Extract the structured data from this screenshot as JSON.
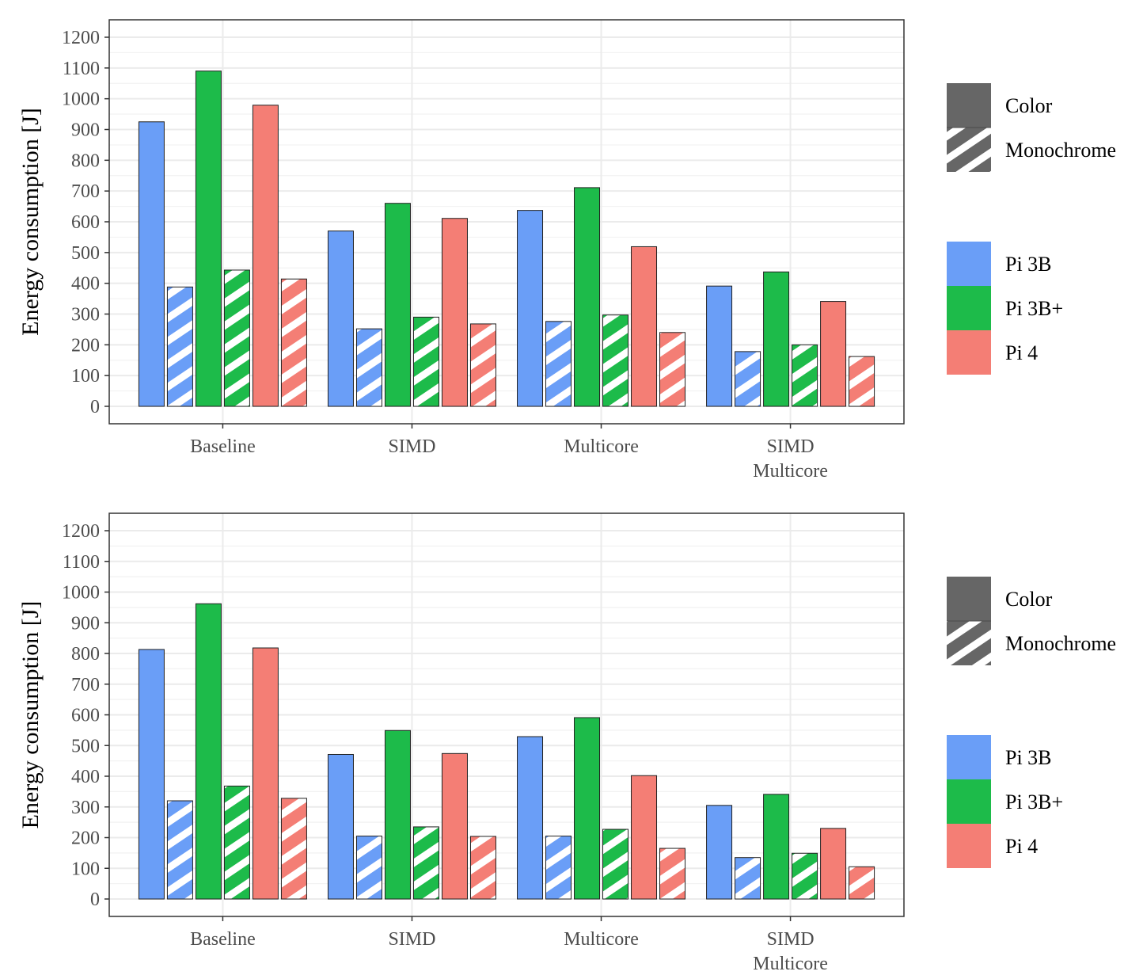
{
  "chart_data": [
    {
      "type": "bar",
      "categories": [
        "Baseline",
        "SIMD",
        "Multicore",
        "SIMD\nMulticore"
      ],
      "ylabel": "Energy consumption [J]",
      "xlabel": "",
      "ylim": [
        0,
        1200
      ],
      "yticks": [
        0,
        100,
        200,
        300,
        400,
        500,
        600,
        700,
        800,
        900,
        1000,
        1100,
        1200
      ],
      "series": [
        {
          "name": "Pi 3B Color",
          "device": "Pi 3B",
          "mode": "Color",
          "values": [
            925,
            570,
            637,
            391
          ]
        },
        {
          "name": "Pi 3B Monochrome",
          "device": "Pi 3B",
          "mode": "Monochrome",
          "values": [
            388,
            252,
            276,
            178
          ]
        },
        {
          "name": "Pi 3B+ Color",
          "device": "Pi 3B+",
          "mode": "Color",
          "values": [
            1090,
            660,
            711,
            437
          ]
        },
        {
          "name": "Pi 3B+ Monochrome",
          "device": "Pi 3B+",
          "mode": "Monochrome",
          "values": [
            443,
            290,
            297,
            200
          ]
        },
        {
          "name": "Pi 4 Color",
          "device": "Pi 4",
          "mode": "Color",
          "values": [
            979,
            611,
            519,
            341
          ]
        },
        {
          "name": "Pi 4 Monochrome",
          "device": "Pi 4",
          "mode": "Monochrome",
          "values": [
            414,
            268,
            240,
            162
          ]
        }
      ],
      "legend_mode": [
        "Color",
        "Monochrome"
      ],
      "legend_device": [
        {
          "label": "Pi 3B",
          "color": "#6A9EF7"
        },
        {
          "label": "Pi 3B+",
          "color": "#1DBB4A"
        },
        {
          "label": "Pi 4",
          "color": "#F47E75"
        }
      ]
    },
    {
      "type": "bar",
      "categories": [
        "Baseline",
        "SIMD",
        "Multicore",
        "SIMD\nMulticore"
      ],
      "ylabel": "Energy consumption [J]",
      "xlabel": "",
      "ylim": [
        0,
        1200
      ],
      "yticks": [
        0,
        100,
        200,
        300,
        400,
        500,
        600,
        700,
        800,
        900,
        1000,
        1100,
        1200
      ],
      "series": [
        {
          "name": "Pi 3B Color",
          "device": "Pi 3B",
          "mode": "Color",
          "values": [
            813,
            471,
            529,
            305
          ]
        },
        {
          "name": "Pi 3B Monochrome",
          "device": "Pi 3B",
          "mode": "Monochrome",
          "values": [
            320,
            205,
            205,
            135
          ]
        },
        {
          "name": "Pi 3B+ Color",
          "device": "Pi 3B+",
          "mode": "Color",
          "values": [
            962,
            549,
            591,
            341
          ]
        },
        {
          "name": "Pi 3B+ Monochrome",
          "device": "Pi 3B+",
          "mode": "Monochrome",
          "values": [
            368,
            235,
            227,
            149
          ]
        },
        {
          "name": "Pi 4 Color",
          "device": "Pi 4",
          "mode": "Color",
          "values": [
            818,
            474,
            402,
            230
          ]
        },
        {
          "name": "Pi 4 Monochrome",
          "device": "Pi 4",
          "mode": "Monochrome",
          "values": [
            328,
            204,
            165,
            105
          ]
        }
      ],
      "legend_mode": [
        "Color",
        "Monochrome"
      ],
      "legend_device": [
        {
          "label": "Pi 3B",
          "color": "#6A9EF7"
        },
        {
          "label": "Pi 3B+",
          "color": "#1DBB4A"
        },
        {
          "label": "Pi 4",
          "color": "#F47E75"
        }
      ]
    }
  ],
  "colors": {
    "Pi 3B": "#6A9EF7",
    "Pi 3B+": "#1DBB4A",
    "Pi 4": "#F47E75",
    "mode_swatch": "#666666"
  }
}
